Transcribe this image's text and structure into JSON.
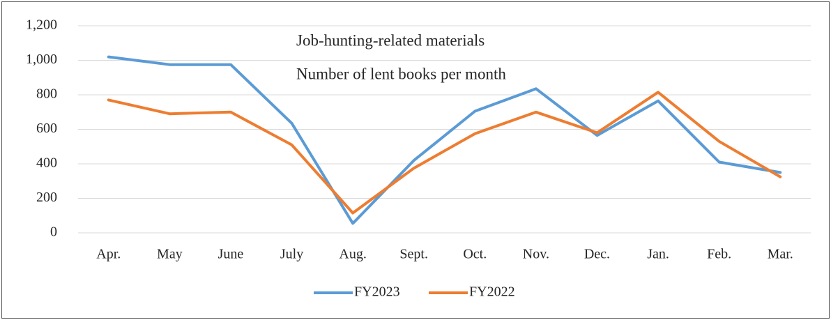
{
  "chart_data": {
    "type": "line",
    "title": "Job-hunting-related materials",
    "subtitle": "Number of lent books per month",
    "categories": [
      "Apr.",
      "May",
      "June",
      "July",
      "Aug.",
      "Sept.",
      "Oct.",
      "Nov.",
      "Dec.",
      "Jan.",
      "Feb.",
      "Mar."
    ],
    "series": [
      {
        "name": "FY2023",
        "color": "#5b9bd5",
        "values": [
          1020,
          975,
          975,
          635,
          55,
          420,
          705,
          835,
          565,
          765,
          410,
          350
        ]
      },
      {
        "name": "FY2022",
        "color": "#ed7d31",
        "values": [
          770,
          690,
          700,
          510,
          115,
          375,
          575,
          700,
          580,
          815,
          530,
          325
        ]
      }
    ],
    "ylim": [
      0,
      1200
    ],
    "yticks": [
      0,
      200,
      400,
      600,
      800,
      {
        "value": 1000,
        "label": "1,000"
      },
      {
        "value": 1200,
        "label": "1,200"
      }
    ],
    "grid": true,
    "legend": "bottom"
  }
}
